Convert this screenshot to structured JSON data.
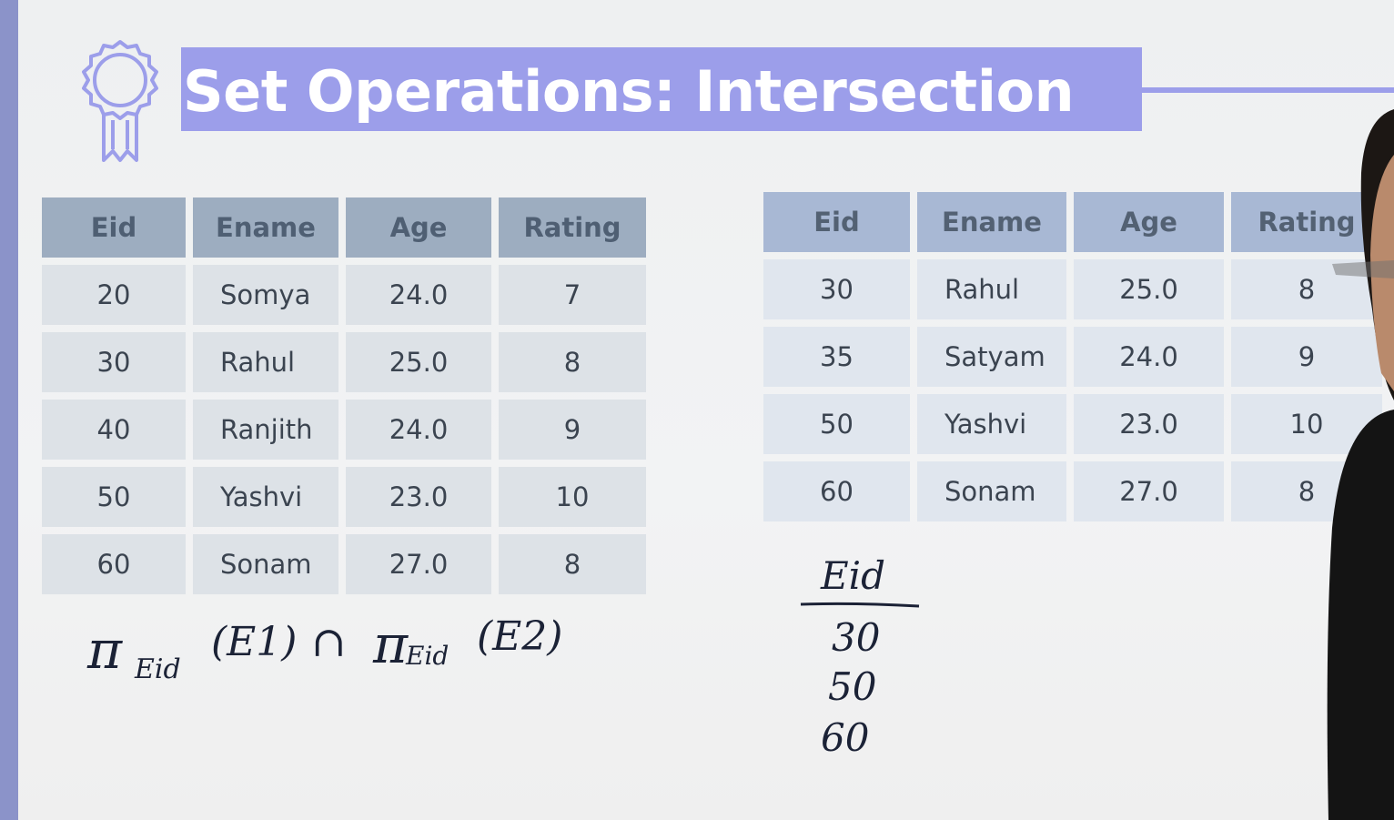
{
  "slide": {
    "title": "Set Operations: Intersection",
    "badge_icon": "award-ribbon-icon",
    "accent_color": "#9c9eea"
  },
  "table_e1": {
    "headers": [
      "Eid",
      "Ename",
      "Age",
      "Rating"
    ],
    "rows": [
      [
        "20",
        "Somya",
        "24.0",
        "7"
      ],
      [
        "30",
        "Rahul",
        "25.0",
        "8"
      ],
      [
        "40",
        "Ranjith",
        "24.0",
        "9"
      ],
      [
        "50",
        "Yashvi",
        "23.0",
        "10"
      ],
      [
        "60",
        "Sonam",
        "27.0",
        "8"
      ]
    ]
  },
  "table_e2": {
    "headers": [
      "Eid",
      "Ename",
      "Age",
      "Rating"
    ],
    "rows": [
      [
        "30",
        "Rahul",
        "25.0",
        "8"
      ],
      [
        "35",
        "Satyam",
        "24.0",
        "9"
      ],
      [
        "50",
        "Yashvi",
        "23.0",
        "10"
      ],
      [
        "60",
        "Sonam",
        "27.0",
        "8"
      ]
    ]
  },
  "handwriting": {
    "expr_pi1": "π",
    "expr_sub1": "Eid",
    "expr_arg1": "(E1)",
    "expr_op": "∩",
    "expr_pi2": "π",
    "expr_sub2": "Eid",
    "expr_arg2": "(E2)",
    "result_header": "Eid",
    "result_values": [
      "30",
      "50",
      "60"
    ]
  }
}
